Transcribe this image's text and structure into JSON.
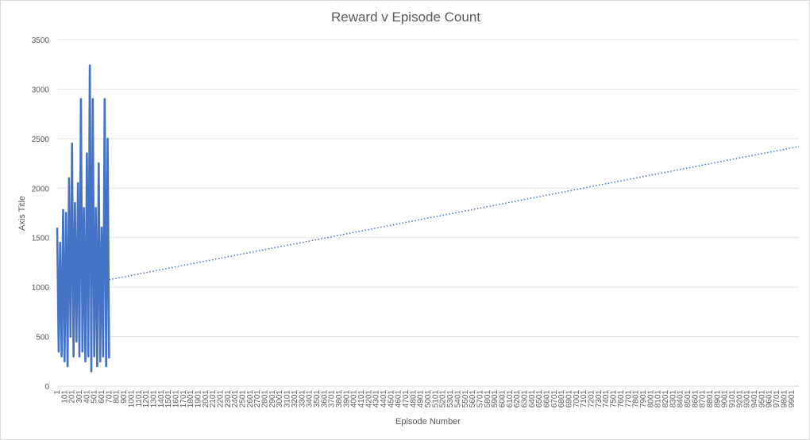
{
  "chart_data": {
    "type": "line",
    "title": "Reward v Episode Count",
    "xlabel": "Episode Number",
    "ylabel": "Axis Title",
    "ylim": [
      0,
      3500
    ],
    "y_ticks": [
      0,
      500,
      1000,
      1500,
      2000,
      2500,
      3000,
      3500
    ],
    "x_tick_labels": [
      "1",
      "101",
      "201",
      "301",
      "401",
      "501",
      "601",
      "701",
      "801",
      "901",
      "1001",
      "1101",
      "1201",
      "1301",
      "1401",
      "1501",
      "1601",
      "1701",
      "1801",
      "1901",
      "2001",
      "2101",
      "2201",
      "2301",
      "2401",
      "2501",
      "2601",
      "2701",
      "2801",
      "2901",
      "3001",
      "3101",
      "3201",
      "3301",
      "3401",
      "3501",
      "3601",
      "3701",
      "3801",
      "3901",
      "4001",
      "4101",
      "4201",
      "4301",
      "4401",
      "4501",
      "4601",
      "4701",
      "4801",
      "4901",
      "5001",
      "5101",
      "5201",
      "5301",
      "5401",
      "5501",
      "5601",
      "5701",
      "5801",
      "5901",
      "6001",
      "6101",
      "6201",
      "6301",
      "6401",
      "6501",
      "6601",
      "6701",
      "6801",
      "6901",
      "7001",
      "7101",
      "7201",
      "7301",
      "7401",
      "7501",
      "7601",
      "7701",
      "7801",
      "7901",
      "8001",
      "8101",
      "8201",
      "8301",
      "8401",
      "8501",
      "8601",
      "8701",
      "8801",
      "8901",
      "9001",
      "9101",
      "9201",
      "9301",
      "9401",
      "9501",
      "9601",
      "9701",
      "9801",
      "9901"
    ],
    "x_range": [
      1,
      10000
    ],
    "grid": true,
    "legend": "none",
    "series": [
      {
        "color": "#4472c4",
        "x": [
          1,
          21,
          41,
          61,
          81,
          101,
          121,
          141,
          161,
          181,
          201,
          221,
          241,
          261,
          281,
          301,
          321,
          341,
          361,
          381,
          401,
          421,
          441,
          461,
          481,
          501,
          521,
          541,
          561,
          581,
          601,
          621,
          641,
          661,
          681,
          701
        ],
        "values": [
          1600,
          350,
          1450,
          300,
          1780,
          250,
          1750,
          200,
          2100,
          500,
          2450,
          300,
          1850,
          450,
          2050,
          300,
          2900,
          350,
          1800,
          250,
          2350,
          300,
          3240,
          150,
          2900,
          300,
          1800,
          200,
          2250,
          250,
          1600,
          300,
          2900,
          200,
          2500,
          280
        ]
      },
      {
        "color": "#4472c4",
        "trendline": "linear",
        "style": "dotted",
        "x": [
          701,
          10000
        ],
        "values": [
          1075,
          2420
        ]
      }
    ]
  }
}
